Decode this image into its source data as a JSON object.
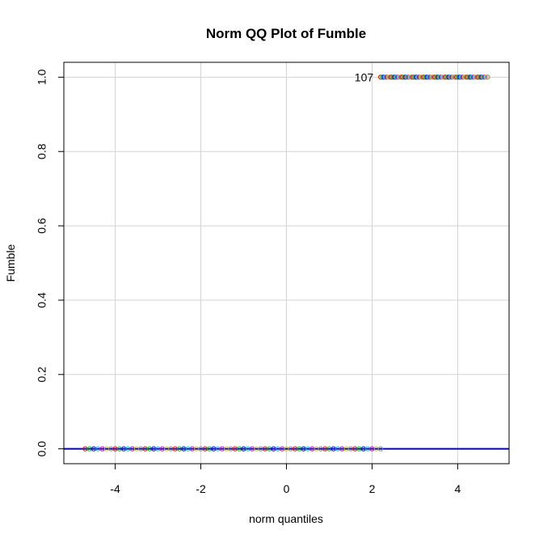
{
  "chart_data": {
    "type": "scatter",
    "title": "Norm QQ Plot of Fumble",
    "xlabel": "norm quantiles",
    "ylabel": "Fumble",
    "xlim": [
      -5.2,
      5.2
    ],
    "ylim": [
      -0.04,
      1.04
    ],
    "xticks": [
      -4,
      -2,
      0,
      2,
      4
    ],
    "xtick_labels": [
      "-4",
      "-2",
      "0",
      "2",
      "4"
    ],
    "yticks": [
      0.0,
      0.2,
      0.4,
      0.6,
      0.8,
      1.0
    ],
    "ytick_labels": [
      "0.0",
      "0.2",
      "0.4",
      "0.6",
      "0.8",
      "1.0"
    ],
    "grid": true,
    "reference_line": {
      "slope": 0,
      "intercept": 0,
      "color": "#0000b0"
    },
    "annotations": [
      {
        "text": "107",
        "x": 2.0,
        "y": 1.0
      }
    ],
    "series": [
      {
        "x_range": [
          -4.7,
          2.2
        ],
        "y": 0,
        "description_points": "dense points at y=0"
      },
      {
        "x_range": [
          2.2,
          4.7
        ],
        "y": 1,
        "description_points": "dense points at y=1"
      }
    ],
    "point_colors": [
      "#ff0000",
      "#00cc00",
      "#0000ff",
      "#00cccc",
      "#cc00cc",
      "#cccc00",
      "#888888"
    ]
  }
}
